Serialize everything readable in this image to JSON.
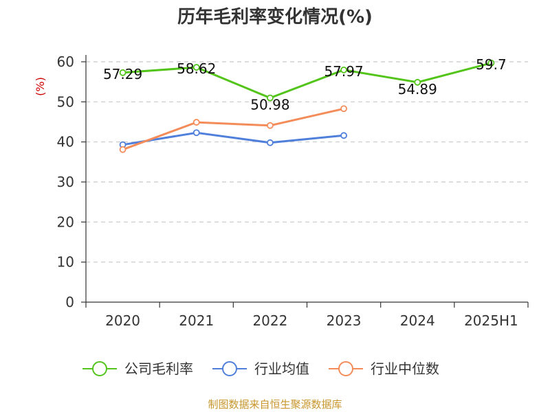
{
  "chart_data": {
    "type": "line",
    "title": "历年毛利率变化情况(%)",
    "ylabel": "(%)",
    "xlabel": "",
    "categories": [
      "2020",
      "2021",
      "2022",
      "2023",
      "2024",
      "2025H1"
    ],
    "ylim": [
      0,
      60
    ],
    "yticks": [
      0,
      10,
      20,
      30,
      40,
      50,
      60
    ],
    "grid": true,
    "legend_position": "bottom",
    "series": [
      {
        "name": "公司毛利率",
        "color": "#52c41a",
        "values": [
          57.29,
          58.62,
          50.98,
          57.97,
          54.89,
          59.7
        ],
        "labels": [
          "57.29",
          "58.62",
          "50.98",
          "57.97",
          "54.89",
          "59.7"
        ],
        "show_labels": true
      },
      {
        "name": "行业均值",
        "color": "#4f7fdb",
        "values": [
          39.3,
          42.3,
          39.8,
          41.6,
          null,
          null
        ],
        "show_labels": false
      },
      {
        "name": "行业中位数",
        "color": "#f48c5a",
        "values": [
          38.1,
          44.9,
          44.1,
          48.3,
          null,
          null
        ],
        "show_labels": false
      }
    ]
  },
  "footer": {
    "source": "制图数据来自恒生聚源数据库"
  }
}
